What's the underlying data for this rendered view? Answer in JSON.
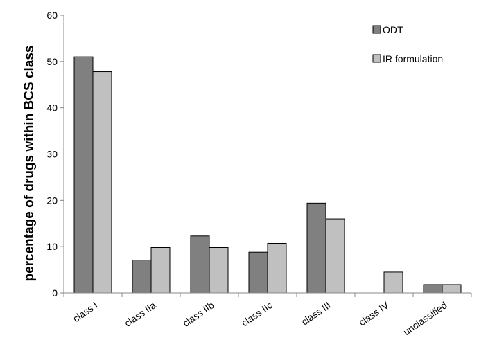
{
  "chart_data": {
    "type": "bar",
    "title": "",
    "xlabel": "",
    "ylabel": "percentage of drugs within BCS class",
    "ylim": [
      0,
      60
    ],
    "yticks": [
      0,
      10,
      20,
      30,
      40,
      50,
      60
    ],
    "grid": false,
    "legend_position": "top-right",
    "categories": [
      "class I",
      "class IIa",
      "class IIb",
      "class IIc",
      "class III",
      "class IV",
      "unclassified"
    ],
    "series": [
      {
        "name": "ODT",
        "color": "#808080",
        "values": [
          51.0,
          7.1,
          12.3,
          8.8,
          19.4,
          0,
          1.8
        ]
      },
      {
        "name": "IR formulation",
        "color": "#c0c0c0",
        "values": [
          47.8,
          9.8,
          9.8,
          10.7,
          16.0,
          4.5,
          1.8
        ]
      }
    ]
  }
}
